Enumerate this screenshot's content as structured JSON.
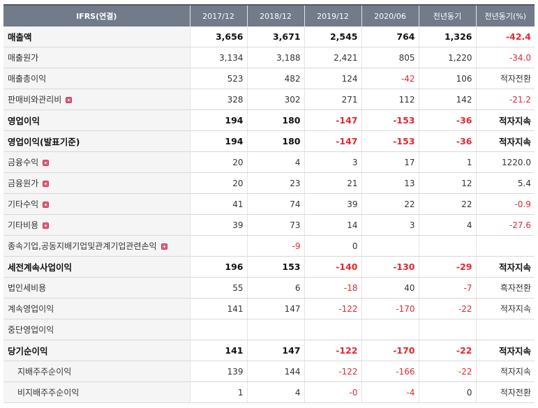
{
  "header": [
    "IFRS(연결)",
    "2017/12",
    "2018/12",
    "2019/12",
    "2020/06",
    "전년동기",
    "전년동기(%)"
  ],
  "rows": [
    {
      "label": "매출액",
      "bold": true,
      "expand": false,
      "indent": false,
      "cells": [
        "3,656",
        "3,671",
        "2,545",
        "764",
        "1,326",
        "-42.4"
      ]
    },
    {
      "label": "매출원가",
      "bold": false,
      "expand": false,
      "indent": false,
      "cells": [
        "3,134",
        "3,188",
        "2,421",
        "805",
        "1,220",
        "-34.0"
      ]
    },
    {
      "label": "매출총이익",
      "bold": false,
      "expand": false,
      "indent": false,
      "cells": [
        "523",
        "482",
        "124",
        "-42",
        "106",
        "적자전환"
      ]
    },
    {
      "label": "판매비와관리비",
      "bold": false,
      "expand": true,
      "indent": false,
      "cells": [
        "328",
        "302",
        "271",
        "112",
        "142",
        "-21.2"
      ]
    },
    {
      "label": "영업이익",
      "bold": true,
      "expand": false,
      "indent": false,
      "cells": [
        "194",
        "180",
        "-147",
        "-153",
        "-36",
        "적자지속"
      ]
    },
    {
      "label": "영업이익(발표기준)",
      "bold": true,
      "expand": false,
      "indent": false,
      "cells": [
        "194",
        "180",
        "-147",
        "-153",
        "-36",
        "적자지속"
      ]
    },
    {
      "label": "금융수익",
      "bold": false,
      "expand": true,
      "indent": false,
      "cells": [
        "20",
        "4",
        "3",
        "17",
        "1",
        "1220.0"
      ]
    },
    {
      "label": "금융원가",
      "bold": false,
      "expand": true,
      "indent": false,
      "cells": [
        "20",
        "23",
        "21",
        "13",
        "12",
        "5.4"
      ]
    },
    {
      "label": "기타수익",
      "bold": false,
      "expand": true,
      "indent": false,
      "cells": [
        "41",
        "74",
        "39",
        "22",
        "22",
        "-0.9"
      ]
    },
    {
      "label": "기타비용",
      "bold": false,
      "expand": true,
      "indent": false,
      "cells": [
        "39",
        "73",
        "14",
        "3",
        "4",
        "-27.6"
      ]
    },
    {
      "label": "종속기업,공동지배기업및관계기업관련손익",
      "bold": false,
      "expand": true,
      "indent": false,
      "cells": [
        "",
        "-9",
        "0",
        "",
        "",
        ""
      ]
    },
    {
      "label": "세전계속사업이익",
      "bold": true,
      "expand": false,
      "indent": false,
      "cells": [
        "196",
        "153",
        "-140",
        "-130",
        "-29",
        "적자지속"
      ]
    },
    {
      "label": "법인세비용",
      "bold": false,
      "expand": false,
      "indent": false,
      "cells": [
        "55",
        "6",
        "-18",
        "40",
        "-7",
        "흑자전환"
      ]
    },
    {
      "label": "계속영업이익",
      "bold": false,
      "expand": false,
      "indent": false,
      "cells": [
        "141",
        "147",
        "-122",
        "-170",
        "-22",
        "적자지속"
      ]
    },
    {
      "label": "중단영업이익",
      "bold": false,
      "expand": false,
      "indent": false,
      "cells": [
        "",
        "",
        "",
        "",
        "",
        ""
      ]
    },
    {
      "label": "당기순이익",
      "bold": true,
      "expand": false,
      "indent": false,
      "cells": [
        "141",
        "147",
        "-122",
        "-170",
        "-22",
        "적자지속"
      ]
    },
    {
      "label": "지배주주순이익",
      "bold": false,
      "expand": false,
      "indent": true,
      "cells": [
        "139",
        "144",
        "-122",
        "-166",
        "-22",
        "적자지속"
      ]
    },
    {
      "label": "비지배주주순이익",
      "bold": false,
      "expand": false,
      "indent": true,
      "cells": [
        "1",
        "4",
        "-0",
        "-4",
        "0",
        "적자전환"
      ]
    }
  ],
  "colors": {
    "header_bg": "#717b89",
    "negative": "#e3272f",
    "label_bg": "#f5f5f5",
    "expand_icon": "#e15d7a"
  },
  "icons": {
    "expand": "plus-square-icon"
  }
}
